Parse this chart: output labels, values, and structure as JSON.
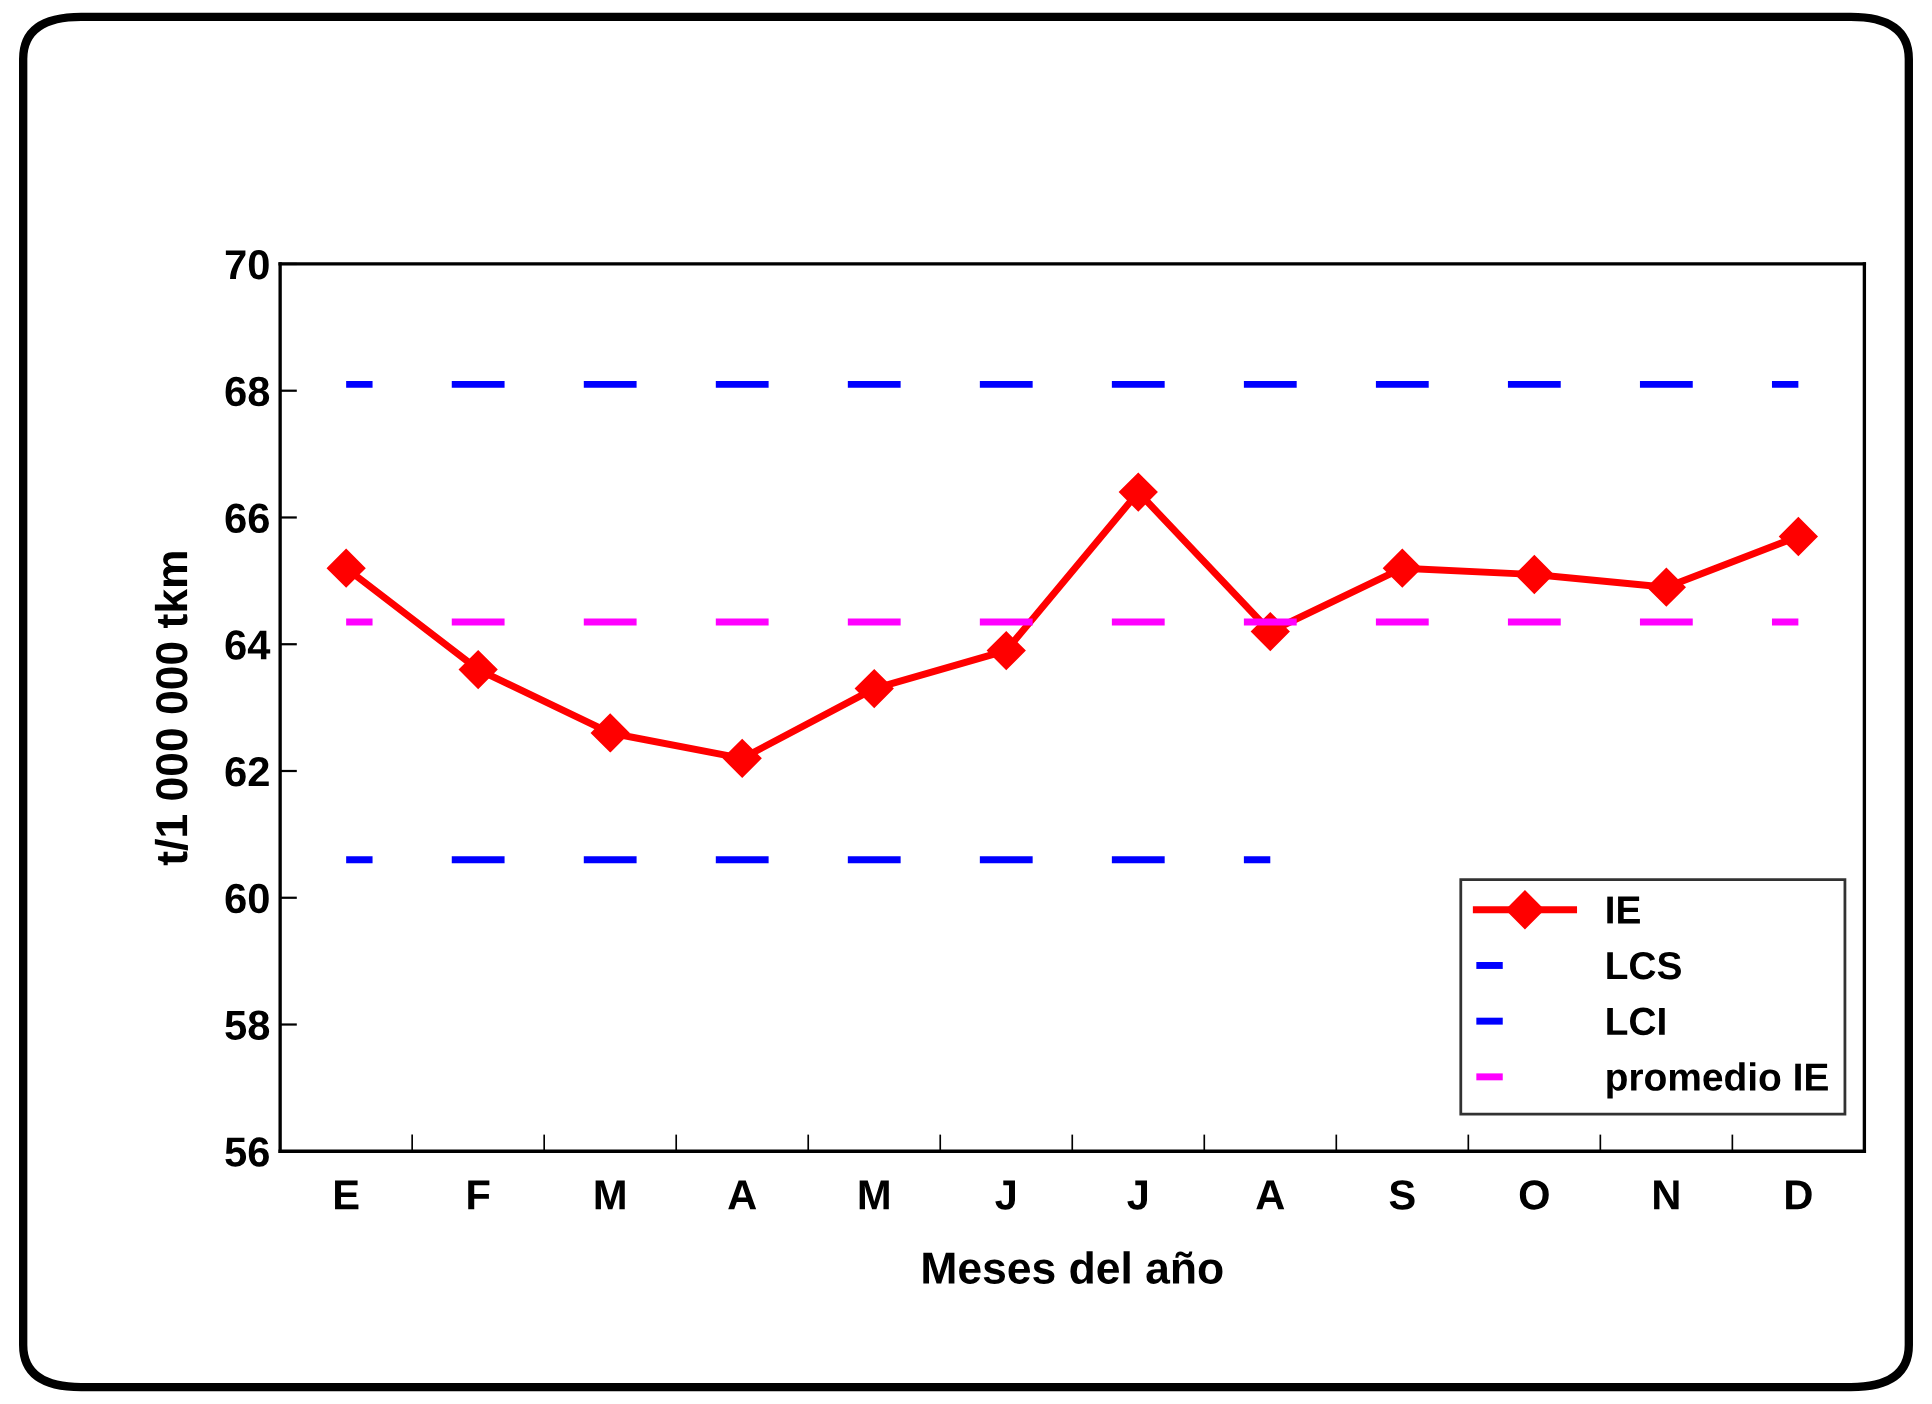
{
  "chart_data": {
    "type": "line",
    "xlabel": "Meses del año",
    "ylabel": "t/1 000 000 tkm",
    "categories": [
      "E",
      "F",
      "M",
      "A",
      "M",
      "J",
      "J",
      "A",
      "S",
      "O",
      "N",
      "D"
    ],
    "series": [
      {
        "name": "IE",
        "color": "#ff0000",
        "marker": "diamond",
        "line_style": "solid",
        "values": [
          65.2,
          63.6,
          62.6,
          62.2,
          63.3,
          63.9,
          66.4,
          64.2,
          65.2,
          65.1,
          64.9,
          65.7
        ]
      },
      {
        "name": "LCS",
        "color": "#0000ff",
        "marker": "none",
        "line_style": "dashed",
        "values": [
          68.1,
          68.1,
          68.1,
          68.1,
          68.1,
          68.1,
          68.1,
          68.1,
          68.1,
          68.1,
          68.1,
          68.1
        ]
      },
      {
        "name": "LCI",
        "color": "#0000ff",
        "marker": "none",
        "line_style": "dashed",
        "values": [
          60.6,
          60.6,
          60.6,
          60.6,
          60.6,
          60.6,
          60.6,
          60.6,
          null,
          null,
          null,
          null
        ]
      },
      {
        "name": "promedio IE",
        "color": "#ff00ff",
        "marker": "none",
        "line_style": "dashed",
        "values": [
          64.35,
          64.35,
          64.35,
          64.35,
          64.35,
          64.35,
          64.35,
          64.35,
          64.35,
          64.35,
          64.35,
          64.35
        ]
      }
    ],
    "ylim": [
      56,
      70
    ],
    "yticks": [
      56,
      58,
      60,
      62,
      64,
      66,
      68,
      70
    ],
    "grid": false,
    "legend": "bottom right"
  }
}
